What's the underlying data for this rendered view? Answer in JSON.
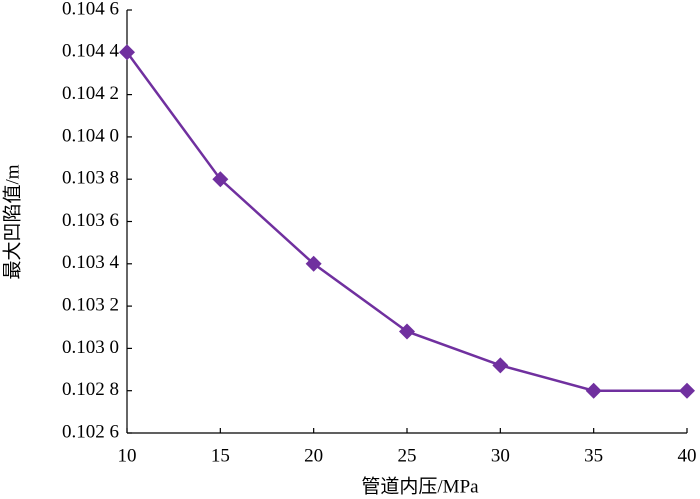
{
  "chart_data": {
    "type": "line",
    "xlabel": "管道内压/MPa",
    "ylabel": "最大凹陷值/m",
    "x": [
      10,
      15,
      20,
      25,
      30,
      35,
      40
    ],
    "values": [
      0.1044,
      0.1038,
      0.1034,
      0.10308,
      0.10292,
      0.1028,
      0.1028
    ],
    "color": "#70309f",
    "marker": "diamond",
    "xlim": [
      10,
      40
    ],
    "xticks": [
      10,
      15,
      20,
      25,
      30,
      35,
      40
    ],
    "ylim": [
      0.1026,
      0.1046
    ],
    "yticks": [
      {
        "value": 0.1026,
        "label": "0.102 6"
      },
      {
        "value": 0.1028,
        "label": "0.102 8"
      },
      {
        "value": 0.103,
        "label": "0.103 0"
      },
      {
        "value": 0.1032,
        "label": "0.103 2"
      },
      {
        "value": 0.1034,
        "label": "0.103 4"
      },
      {
        "value": 0.1036,
        "label": "0.103 6"
      },
      {
        "value": 0.1038,
        "label": "0.103 8"
      },
      {
        "value": 0.104,
        "label": "0.104 0"
      },
      {
        "value": 0.1042,
        "label": "0.104 2"
      },
      {
        "value": 0.1044,
        "label": "0.104 4"
      },
      {
        "value": 0.1046,
        "label": "0.104 6"
      }
    ],
    "grid": false
  }
}
